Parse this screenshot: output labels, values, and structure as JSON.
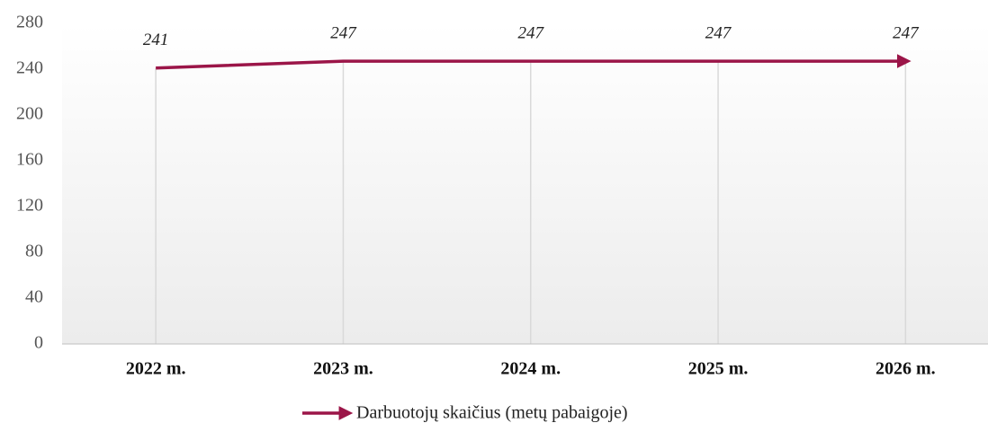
{
  "chart_data": {
    "type": "line",
    "categories": [
      "2022 m.",
      "2023 m.",
      "2024 m.",
      "2025 m.",
      "2026 m."
    ],
    "series": [
      {
        "name": "Darbuotojų skaičius (metų pabaigoje)",
        "color": "#9b1548",
        "values": [
          241,
          247,
          247,
          247,
          247
        ]
      }
    ],
    "ylim": [
      0,
      280
    ],
    "yticks": [
      0,
      40,
      80,
      120,
      160,
      200,
      240,
      280
    ],
    "grid": "x",
    "legend": "bottom"
  }
}
